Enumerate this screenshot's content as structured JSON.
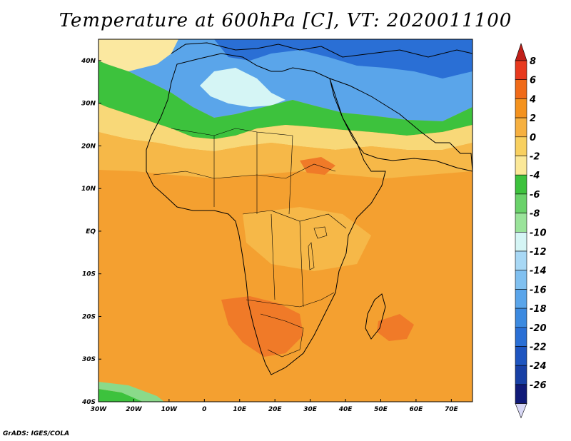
{
  "title": "Temperature at 600hPa [C], VT: 2020011100",
  "credit": "GrADS: IGES/COLA",
  "map": {
    "lon_range": [
      -30,
      76
    ],
    "lat_range": [
      -40,
      45
    ],
    "x_ticks": [
      {
        "lon": -30,
        "label": "30W"
      },
      {
        "lon": -20,
        "label": "20W"
      },
      {
        "lon": -10,
        "label": "10W"
      },
      {
        "lon": 0,
        "label": "0"
      },
      {
        "lon": 10,
        "label": "10E"
      },
      {
        "lon": 20,
        "label": "20E"
      },
      {
        "lon": 30,
        "label": "30E"
      },
      {
        "lon": 40,
        "label": "40E"
      },
      {
        "lon": 50,
        "label": "50E"
      },
      {
        "lon": 60,
        "label": "60E"
      },
      {
        "lon": 70,
        "label": "70E"
      }
    ],
    "y_ticks": [
      {
        "lat": 40,
        "label": "40N"
      },
      {
        "lat": 30,
        "label": "30N"
      },
      {
        "lat": 20,
        "label": "20N"
      },
      {
        "lat": 10,
        "label": "10N"
      },
      {
        "lat": 0,
        "label": "EQ"
      },
      {
        "lat": -10,
        "label": "10S"
      },
      {
        "lat": -20,
        "label": "20S"
      },
      {
        "lat": -30,
        "label": "30S"
      },
      {
        "lat": -40,
        "label": "40S"
      }
    ]
  },
  "colorbar": {
    "levels": [
      8,
      6,
      4,
      2,
      0,
      -2,
      -4,
      -6,
      -8,
      -10,
      -12,
      -14,
      -16,
      -18,
      -20,
      -22,
      -24,
      -26
    ],
    "labels": [
      "8",
      "6",
      "4",
      "2",
      "0",
      "-2",
      "-4",
      "-6",
      "-8",
      "-10",
      "-12",
      "-14",
      "-16",
      "-18",
      "-20",
      "-22",
      "-24",
      "-26"
    ],
    "colors": [
      "#e8391e",
      "#f06a18",
      "#f4921e",
      "#f6b040",
      "#f8d060",
      "#fbe898",
      "#3dc23d",
      "#6ad26a",
      "#9ae39a",
      "#d5f5f5",
      "#a8d8f5",
      "#80c0f0",
      "#5aa5ea",
      "#3c8ae0",
      "#2a6fd5",
      "#1e55c0",
      "#1840a5",
      "#101a78"
    ],
    "top_arrow_color": "#c0201a",
    "bottom_arrow_color": "#d8d8f5"
  },
  "field_colors": {
    "hot": "#f07a28",
    "warm": "#f4a030",
    "mild": "#f6b848",
    "cool_yellow": "#f8d878",
    "pale_yellow": "#fbe8a0",
    "green": "#3dc23d",
    "light_green": "#8ada8a",
    "pale_cyan": "#d5f5f5",
    "light_blue": "#a8d8f5",
    "blue": "#5aa5ea",
    "deep_blue": "#2a6fd5"
  }
}
